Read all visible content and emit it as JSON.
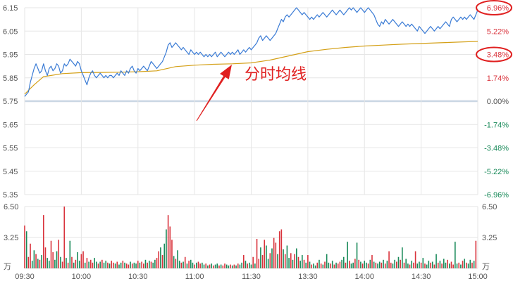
{
  "chart_data": [
    {
      "type": "line",
      "title": "",
      "x_ticks": [
        "09:30",
        "10:00",
        "10:30",
        "11:00",
        "11:30",
        "13:30",
        "14:00",
        "14:30",
        "15:00"
      ],
      "left_axis_ticks": [
        "6.15",
        "6.05",
        "5.95",
        "5.85",
        "5.75",
        "5.65",
        "5.55",
        "5.45",
        "5.35"
      ],
      "right_axis_ticks": [
        "6.96%",
        "5.22%",
        "3.48%",
        "1.74%",
        "0.00%",
        "-1.74%",
        "-3.48%",
        "-5.22%",
        "-6.96%"
      ],
      "ylim": [
        5.35,
        6.15
      ],
      "prev_close": 5.75,
      "series": [
        {
          "color": "#3a7bd5",
          "x": [
            0,
            1,
            2,
            3,
            4,
            5,
            6,
            7,
            8,
            9,
            10,
            11,
            12,
            13,
            14,
            15,
            16,
            17,
            18,
            19,
            20,
            21,
            22,
            23,
            24,
            25,
            26,
            27,
            28,
            29,
            30,
            31,
            32,
            33,
            34,
            35,
            36,
            37,
            38,
            39,
            40,
            41,
            42,
            43,
            44,
            45,
            46,
            47,
            48,
            49,
            50,
            51,
            52,
            53,
            54,
            55,
            56,
            57,
            58,
            59,
            60,
            61,
            62,
            63,
            64,
            65,
            66,
            67,
            68,
            69,
            70,
            71,
            72,
            73,
            74,
            75,
            76,
            77,
            78,
            79,
            80,
            81,
            82,
            83,
            84,
            85,
            86,
            87,
            88,
            89,
            90,
            91,
            92,
            93,
            94,
            95,
            96,
            97,
            98,
            99,
            100,
            101,
            102,
            103,
            104,
            105,
            106,
            107,
            108,
            109,
            110,
            111,
            112,
            113,
            114,
            115,
            116,
            117,
            118,
            119,
            120,
            121,
            122,
            123,
            124,
            125,
            126,
            127,
            128,
            129,
            130,
            131,
            132,
            133,
            134,
            135,
            136,
            137,
            138,
            139,
            140,
            141,
            142,
            143,
            144,
            145,
            146,
            147,
            148,
            149,
            150,
            151,
            152,
            153,
            154,
            155,
            156,
            157,
            158,
            159,
            160,
            161,
            162,
            163,
            164,
            165,
            166,
            167,
            168,
            169,
            170,
            171,
            172,
            173,
            174,
            175,
            176,
            177,
            178,
            179,
            180,
            181,
            182,
            183,
            184,
            185,
            186,
            187,
            188,
            189,
            190,
            191,
            192,
            193,
            194,
            195,
            196,
            197,
            198,
            199,
            200,
            201,
            202,
            203,
            204,
            205,
            206,
            207,
            208,
            209,
            210,
            211,
            212,
            213,
            214,
            215,
            216,
            217,
            218,
            219,
            220,
            221,
            222,
            223,
            224,
            225,
            226,
            227,
            228,
            229,
            230,
            231,
            232,
            233,
            234,
            235,
            236,
            237,
            238,
            239,
            240
          ],
          "values": [
            5.77,
            5.78,
            5.79,
            5.83,
            5.86,
            5.89,
            5.91,
            5.89,
            5.87,
            5.88,
            5.91,
            5.88,
            5.86,
            5.89,
            5.9,
            5.88,
            5.89,
            5.91,
            5.9,
            5.87,
            5.88,
            5.91,
            5.9,
            5.91,
            5.93,
            5.92,
            5.91,
            5.9,
            5.92,
            5.91,
            5.88,
            5.86,
            5.84,
            5.82,
            5.85,
            5.87,
            5.88,
            5.86,
            5.85,
            5.86,
            5.87,
            5.86,
            5.85,
            5.86,
            5.85,
            5.86,
            5.86,
            5.85,
            5.86,
            5.87,
            5.86,
            5.88,
            5.87,
            5.86,
            5.88,
            5.87,
            5.89,
            5.9,
            5.88,
            5.87,
            5.89,
            5.88,
            5.89,
            5.9,
            5.89,
            5.88,
            5.9,
            5.92,
            5.91,
            5.9,
            5.89,
            5.9,
            5.91,
            5.92,
            5.94,
            5.96,
            5.99,
            6.0,
            5.98,
            5.99,
            6.0,
            5.99,
            5.98,
            5.97,
            5.98,
            5.97,
            5.96,
            5.95,
            5.97,
            5.96,
            5.95,
            5.96,
            5.95,
            5.96,
            5.95,
            5.94,
            5.95,
            5.94,
            5.95,
            5.94,
            5.95,
            5.96,
            5.94,
            5.95,
            5.96,
            5.95,
            5.94,
            5.95,
            5.96,
            5.95,
            5.96,
            5.95,
            5.96,
            5.97,
            5.95,
            5.96,
            5.97,
            5.96,
            5.97,
            5.98,
            5.97,
            5.98,
            5.99,
            6.0,
            6.02,
            6.03,
            6.01,
            6.02,
            6.03,
            6.02,
            6.01,
            6.02,
            6.03,
            6.04,
            6.06,
            6.08,
            6.1,
            6.09,
            6.11,
            6.12,
            6.11,
            6.12,
            6.13,
            6.14,
            6.15,
            6.14,
            6.13,
            6.12,
            6.13,
            6.12,
            6.11,
            6.1,
            6.11,
            6.1,
            6.11,
            6.12,
            6.11,
            6.12,
            6.13,
            6.12,
            6.11,
            6.12,
            6.13,
            6.14,
            6.13,
            6.12,
            6.13,
            6.14,
            6.13,
            6.12,
            6.13,
            6.14,
            6.15,
            6.14,
            6.15,
            6.14,
            6.13,
            6.14,
            6.15,
            6.14,
            6.13,
            6.14,
            6.15,
            6.14,
            6.13,
            6.12,
            6.1,
            6.08,
            6.07,
            6.09,
            6.08,
            6.1,
            6.09,
            6.08,
            6.09,
            6.1,
            6.09,
            6.08,
            6.07,
            6.08,
            6.09,
            6.08,
            6.07,
            6.08,
            6.07,
            6.08,
            6.07,
            6.06,
            6.05,
            6.07,
            6.06,
            6.05,
            6.04,
            6.05,
            6.06,
            6.07,
            6.06,
            6.05,
            6.06,
            6.07,
            6.06,
            6.07,
            6.08,
            6.09,
            6.08,
            6.07,
            6.1,
            6.11,
            6.1,
            6.09,
            6.1,
            6.11,
            6.1,
            6.11,
            6.1,
            6.11,
            6.12,
            6.11,
            6.1,
            6.12,
            6.14
          ]
        },
        {
          "name": "分时均线",
          "color": "#d4a017",
          "x": [
            0,
            5,
            10,
            20,
            30,
            40,
            50,
            60,
            70,
            80,
            90,
            100,
            110,
            120,
            130,
            140,
            150,
            160,
            170,
            180,
            190,
            200,
            210,
            220,
            230,
            240
          ],
          "values": [
            5.78,
            5.82,
            5.855,
            5.868,
            5.872,
            5.873,
            5.874,
            5.876,
            5.88,
            5.898,
            5.904,
            5.908,
            5.91,
            5.914,
            5.926,
            5.944,
            5.962,
            5.972,
            5.98,
            5.986,
            5.99,
            5.994,
            5.997,
            6.0,
            6.003,
            6.006
          ]
        }
      ]
    },
    {
      "type": "bar",
      "title": "",
      "left_axis_ticks": [
        "6.50",
        "3.25",
        "万"
      ],
      "right_axis_ticks": [
        "6.50",
        "3.25",
        "万"
      ],
      "ylim": [
        0,
        6.5
      ],
      "colors": {
        "up": "#d9333c",
        "down": "#1a8a5a"
      },
      "values": [
        4.5,
        3.9,
        1.2,
        2.6,
        0.8,
        1.9,
        1.5,
        1.0,
        0.9,
        1.4,
        5.6,
        2.2,
        1.1,
        0.8,
        2.9,
        1.7,
        0.9,
        1.8,
        3.0,
        1.2,
        0.7,
        6.5,
        1.1,
        0.6,
        2.9,
        1.2,
        0.6,
        0.9,
        1.7,
        0.8,
        1.5,
        1.8,
        0.6,
        1.1,
        0.7,
        0.9,
        0.6,
        1.1,
        0.7,
        0.5,
        0.7,
        0.9,
        0.6,
        0.8,
        0.6,
        0.5,
        0.8,
        0.6,
        0.5,
        0.7,
        0.4,
        0.6,
        0.8,
        0.6,
        0.5,
        0.4,
        0.7,
        0.5,
        0.6,
        0.5,
        0.8,
        0.6,
        0.7,
        0.5,
        0.9,
        0.6,
        0.8,
        0.7,
        0.6,
        0.9,
        1.1,
        1.8,
        2.2,
        1.4,
        2.6,
        4.1,
        5.6,
        4.4,
        3.0,
        1.3,
        1.0,
        1.9,
        0.8,
        0.6,
        0.7,
        1.2,
        0.5,
        0.8,
        0.9,
        0.6,
        0.4,
        0.6,
        0.7,
        0.5,
        0.6,
        0.4,
        0.5,
        0.3,
        0.4,
        0.5,
        0.3,
        0.4,
        0.5,
        0.3,
        0.4,
        0.3,
        0.5,
        0.4,
        0.3,
        0.4,
        0.3,
        0.4,
        0.3,
        0.5,
        0.4,
        0.6,
        1.4,
        0.8,
        0.5,
        0.6,
        0.4,
        1.2,
        0.5,
        3.1,
        1.0,
        2.2,
        1.4,
        3.0,
        2.4,
        1.0,
        1.6,
        2.1,
        3.2,
        2.7,
        1.5,
        3.9,
        4.1,
        2.0,
        1.5,
        2.4,
        1.1,
        1.6,
        0.9,
        1.5,
        2.1,
        1.2,
        0.8,
        1.4,
        0.9,
        0.6,
        1.4,
        0.7,
        0.4,
        0.5,
        0.3,
        0.6,
        0.9,
        0.5,
        0.4,
        0.7,
        1.5,
        0.6,
        0.5,
        0.8,
        0.4,
        0.6,
        0.5,
        0.7,
        0.9,
        1.2,
        0.6,
        2.8,
        0.8,
        0.5,
        0.6,
        1.0,
        2.7,
        0.9,
        0.7,
        0.5,
        0.8,
        0.6,
        0.5,
        0.9,
        1.4,
        0.7,
        0.6,
        0.5,
        0.7,
        0.6,
        0.9,
        0.5,
        0.8,
        1.8,
        0.6,
        0.5,
        0.9,
        0.7,
        1.2,
        0.9,
        2.2,
        0.6,
        1.0,
        0.5,
        0.4,
        0.8,
        0.6,
        1.8,
        0.5,
        0.7,
        0.6,
        1.1,
        0.5,
        0.4,
        0.8,
        0.6,
        0.7,
        0.4,
        1.5,
        0.6,
        0.8,
        0.5,
        1.0,
        0.6,
        0.9,
        0.5,
        0.7,
        0.4,
        2.8,
        0.5,
        0.6,
        0.4,
        0.8,
        1.0,
        0.6,
        0.5,
        0.9,
        0.6,
        0.8,
        2.9
      ],
      "up": [
        1,
        0,
        1,
        1,
        0,
        0,
        1,
        0,
        1,
        0,
        1,
        1,
        0,
        0,
        1,
        1,
        0,
        0,
        1,
        0,
        1,
        1,
        0,
        1,
        0,
        1,
        0,
        1,
        0,
        0,
        1,
        1,
        0,
        1,
        0,
        1,
        1,
        0,
        0,
        1,
        0,
        1,
        0,
        0,
        1,
        0,
        1,
        1,
        0,
        1,
        0,
        0,
        1,
        0,
        1,
        1,
        0,
        1,
        0,
        0,
        1,
        0,
        1,
        1,
        0,
        1,
        0,
        1,
        0,
        0,
        1,
        1,
        0,
        1,
        0,
        0,
        1,
        1,
        1,
        0,
        1,
        0,
        0,
        1,
        0,
        1,
        0,
        1,
        0,
        0,
        1,
        0,
        1,
        1,
        0,
        0,
        1,
        0,
        1,
        0,
        1,
        0,
        0,
        1,
        0,
        1,
        1,
        0,
        0,
        1,
        0,
        1,
        0,
        1,
        0,
        0,
        1,
        0,
        1,
        0,
        0,
        1,
        0,
        1,
        1,
        0,
        1,
        1,
        0,
        0,
        1,
        0,
        1,
        1,
        0,
        1,
        1,
        0,
        1,
        0,
        0,
        1,
        0,
        1,
        0,
        1,
        0,
        0,
        1,
        0,
        1,
        0,
        1,
        0,
        0,
        1,
        0,
        1,
        0,
        1,
        0,
        0,
        1,
        0,
        1,
        0,
        1,
        1,
        0,
        0,
        1,
        0,
        1,
        0,
        0,
        1,
        0,
        1,
        0,
        1,
        0,
        0,
        1,
        0,
        1,
        0,
        1,
        0,
        0,
        1,
        0,
        1,
        0,
        1,
        1,
        0,
        0,
        1,
        0,
        1,
        0,
        1,
        0,
        0,
        1,
        0,
        1,
        1,
        0,
        0,
        1,
        0,
        1,
        0,
        0,
        1,
        0,
        1,
        0,
        1,
        0,
        1,
        0,
        0,
        1,
        0,
        1,
        1,
        0,
        0,
        1,
        0,
        1,
        0,
        1,
        0,
        0,
        1,
        0,
        1,
        1
      ]
    }
  ],
  "annotation": {
    "label": "分时均线",
    "color": "#e02020"
  },
  "colors": {
    "up": "#d9333c",
    "down": "#1a8a5a",
    "grid": "#e6e6e6",
    "zero_line": "#c9d6e3",
    "axis_text": "#555555",
    "highlight": "#e02020"
  }
}
